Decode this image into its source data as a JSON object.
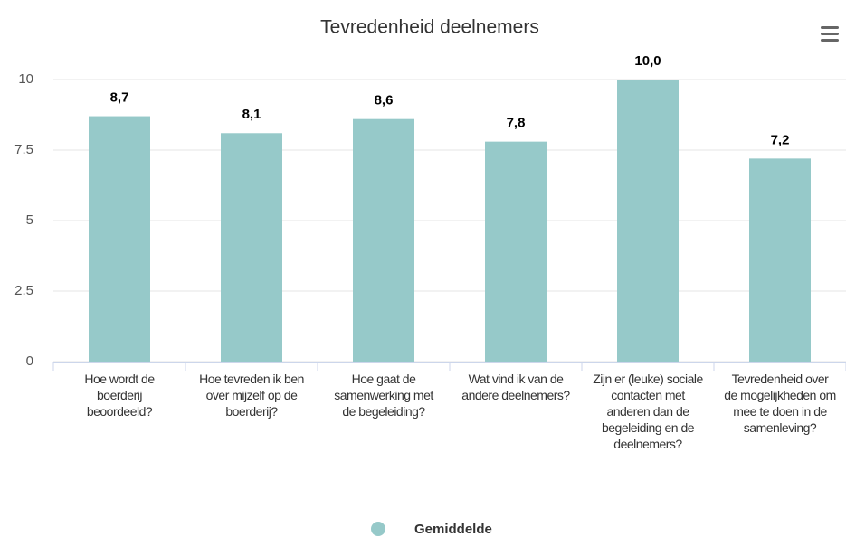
{
  "chart_data": {
    "type": "bar",
    "title": "Tevredenheid deelnemers",
    "categories": [
      "Hoe wordt de boerderij beoordeeld?",
      "Hoe tevreden ik ben over mijzelf op de boerderij?",
      "Hoe gaat de samenwerking met de begeleiding?",
      "Wat vind ik van de andere deelnemers?",
      "Zijn er (leuke) sociale contacten met anderen dan de begeleiding en de deelnemers?",
      "Tevredenheid over de mogelijkheden om mee te doen in de samenleving?"
    ],
    "series": [
      {
        "name": "Gemiddelde",
        "color": "#96c9c9",
        "values": [
          8.7,
          8.1,
          8.6,
          7.8,
          10.0,
          7.2
        ],
        "value_labels": [
          "8,7",
          "8,1",
          "8,6",
          "7,8",
          "10,0",
          "7,2"
        ]
      }
    ],
    "ylim": [
      0,
      10
    ],
    "yticks": [
      0,
      2.5,
      5,
      7.5,
      10
    ],
    "grid": true,
    "legend": "bottom"
  }
}
